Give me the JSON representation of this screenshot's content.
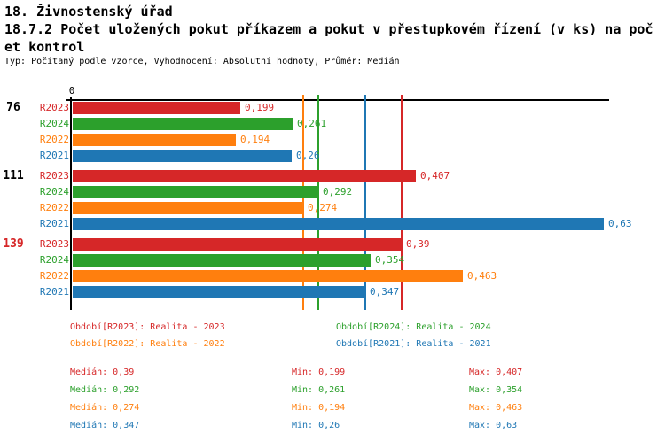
{
  "header": {
    "title": "18. Živnostenský úřad",
    "subtitle_line1": "18.7.2 Počet uložených pokut příkazem a pokut v přestupkovém řízení (v ks) na poč",
    "subtitle_line2": "et kontrol",
    "meta": "Typ: Počítaný podle vzorce, Vyhodnocení: Absolutní hodnoty, Průměr: Medián"
  },
  "colors": {
    "R2023": "#d62728",
    "R2024": "#2ca02c",
    "R2022": "#ff7f0e",
    "R2021": "#1f77b4",
    "axis": "#000000",
    "background": "#ffffff"
  },
  "chart_data": {
    "type": "bar",
    "orientation": "horizontal",
    "title": "18.7.2 Počet uložených pokut příkazem a pokut v přestupkovém řízení (v ks) na počet kontrol",
    "x_axis": {
      "zero_label": "0",
      "min": 0,
      "grid": false
    },
    "series_order": [
      "R2023",
      "R2024",
      "R2022",
      "R2021"
    ],
    "groups": [
      {
        "label": "76",
        "label_color": "#000000",
        "bars": [
          {
            "series": "R2023",
            "value": 0.199,
            "display": "0,199"
          },
          {
            "series": "R2024",
            "value": 0.261,
            "display": "0,261"
          },
          {
            "series": "R2022",
            "value": 0.194,
            "display": "0,194"
          },
          {
            "series": "R2021",
            "value": 0.26,
            "display": "0,26"
          }
        ]
      },
      {
        "label": "111",
        "label_color": "#000000",
        "bars": [
          {
            "series": "R2023",
            "value": 0.407,
            "display": "0,407"
          },
          {
            "series": "R2024",
            "value": 0.292,
            "display": "0,292"
          },
          {
            "series": "R2022",
            "value": 0.274,
            "display": "0,274"
          },
          {
            "series": "R2021",
            "value": 0.63,
            "display": "0,63"
          }
        ]
      },
      {
        "label": "139",
        "label_color": "#d62728",
        "bars": [
          {
            "series": "R2023",
            "value": 0.39,
            "display": "0,39"
          },
          {
            "series": "R2024",
            "value": 0.354,
            "display": "0,354"
          },
          {
            "series": "R2022",
            "value": 0.463,
            "display": "0,463"
          },
          {
            "series": "R2021",
            "value": 0.347,
            "display": "0,347"
          }
        ]
      }
    ],
    "median_lines": [
      {
        "series": "R2023",
        "value": 0.39
      },
      {
        "series": "R2024",
        "value": 0.292
      },
      {
        "series": "R2022",
        "value": 0.274
      },
      {
        "series": "R2021",
        "value": 0.347
      }
    ]
  },
  "legend": {
    "items": [
      {
        "series": "R2023",
        "text": "Období[R2023]: Realita - 2023"
      },
      {
        "series": "R2024",
        "text": "Období[R2024]: Realita - 2024"
      },
      {
        "series": "R2022",
        "text": "Období[R2022]: Realita - 2022"
      },
      {
        "series": "R2021",
        "text": "Období[R2021]: Realita - 2021"
      }
    ]
  },
  "stats": {
    "rows": [
      {
        "series": "R2023",
        "median": "Medián: 0,39",
        "min": "Min: 0,199",
        "max": "Max: 0,407"
      },
      {
        "series": "R2024",
        "median": "Medián: 0,292",
        "min": "Min: 0,261",
        "max": "Max: 0,354"
      },
      {
        "series": "R2022",
        "median": "Medián: 0,274",
        "min": "Min: 0,194",
        "max": "Max: 0,463"
      },
      {
        "series": "R2021",
        "median": "Medián: 0,347",
        "min": "Min: 0,26",
        "max": "Max: 0,63"
      }
    ]
  }
}
